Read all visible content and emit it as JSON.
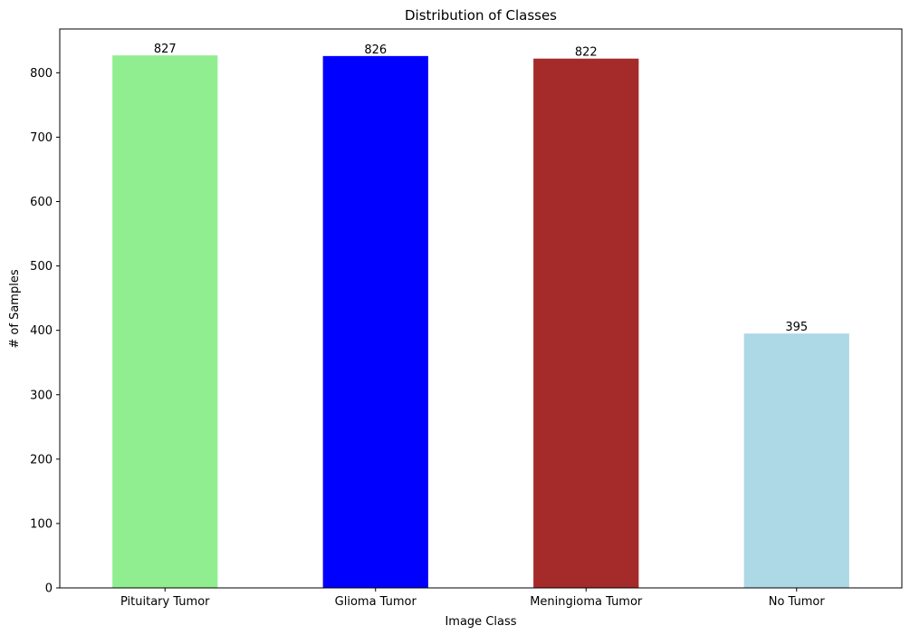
{
  "chart_data": {
    "type": "bar",
    "title": "Distribution of Classes",
    "xlabel": "Image Class",
    "ylabel": "# of Samples",
    "categories": [
      "Pituitary Tumor",
      "Glioma Tumor",
      "Meningioma Tumor",
      "No Tumor"
    ],
    "values": [
      827,
      826,
      822,
      395
    ],
    "data_labels": [
      "827",
      "826",
      "822",
      "395"
    ],
    "colors": [
      "#90ee90",
      "#0000ff",
      "#a52a2a",
      "#add8e6"
    ],
    "ylim": [
      0,
      868
    ],
    "yticks": [
      0,
      100,
      200,
      300,
      400,
      500,
      600,
      700,
      800
    ],
    "grid": false,
    "legend": "none"
  }
}
